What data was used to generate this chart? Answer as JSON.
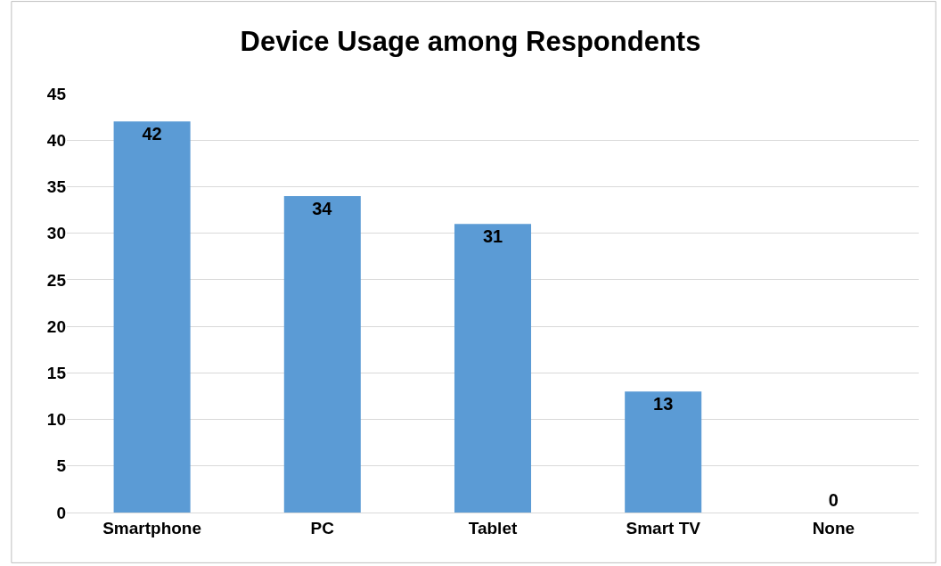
{
  "chart_data": {
    "type": "bar",
    "title": "Device Usage among Respondents",
    "categories": [
      "Smartphone",
      "PC",
      "Tablet",
      "Smart TV",
      "None"
    ],
    "values": [
      42,
      34,
      31,
      13,
      0
    ],
    "color": "#5b9bd5",
    "ylim": [
      0,
      45
    ],
    "yticks": [
      0,
      5,
      10,
      15,
      20,
      25,
      30,
      35,
      40,
      45
    ],
    "grid": "y",
    "data_labels": true
  }
}
